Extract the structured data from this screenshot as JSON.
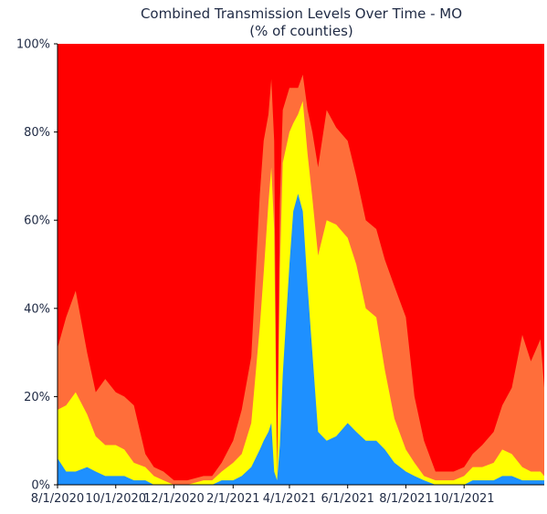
{
  "chart_data": {
    "type": "area",
    "stacked": true,
    "normalized_to_percent": true,
    "title": "Combined Transmission Levels Over Time - MO",
    "subtitle": "(% of counties)",
    "xlabel": "",
    "ylabel": "",
    "x_domain": [
      "2020-08-01",
      "2021-12-24"
    ],
    "ylim": [
      0,
      100
    ],
    "y_ticks": [
      0,
      20,
      40,
      60,
      80,
      100
    ],
    "y_tick_labels": [
      "0%",
      "20%",
      "40%",
      "60%",
      "80%",
      "100%"
    ],
    "x_ticks": [
      "2020-08-01",
      "2020-10-01",
      "2020-12-01",
      "2021-02-01",
      "2021-04-01",
      "2021-06-01",
      "2021-08-01",
      "2021-10-01"
    ],
    "x_tick_labels": [
      "8/1/2020",
      "10/1/2020",
      "12/1/2020",
      "2/1/2021",
      "4/1/2021",
      "6/1/2021",
      "8/1/2021",
      "10/1/2021"
    ],
    "grid": false,
    "legend": "none",
    "colors": {
      "low": "#1e90ff",
      "moderate": "#ffff00",
      "substantial": "#ff6e3a",
      "high": "#ff0000"
    },
    "x": [
      "2020-08-01",
      "2020-08-10",
      "2020-08-20",
      "2020-09-01",
      "2020-09-10",
      "2020-09-20",
      "2020-10-01",
      "2020-10-10",
      "2020-10-20",
      "2020-11-01",
      "2020-11-10",
      "2020-11-20",
      "2020-12-01",
      "2020-12-15",
      "2021-01-01",
      "2021-01-10",
      "2021-01-20",
      "2021-02-01",
      "2021-02-10",
      "2021-02-20",
      "2021-03-01",
      "2021-03-05",
      "2021-03-10",
      "2021-03-13",
      "2021-03-16",
      "2021-03-19",
      "2021-03-22",
      "2021-03-25",
      "2021-04-01",
      "2021-04-05",
      "2021-04-10",
      "2021-04-15",
      "2021-04-20",
      "2021-04-25",
      "2021-05-01",
      "2021-05-10",
      "2021-05-20",
      "2021-06-01",
      "2021-06-10",
      "2021-06-20",
      "2021-07-01",
      "2021-07-10",
      "2021-07-20",
      "2021-08-01",
      "2021-08-10",
      "2021-08-20",
      "2021-09-01",
      "2021-09-10",
      "2021-09-20",
      "2021-10-01",
      "2021-10-10",
      "2021-10-20",
      "2021-11-01",
      "2021-11-10",
      "2021-11-20",
      "2021-12-01",
      "2021-12-10",
      "2021-12-20",
      "2021-12-24"
    ],
    "series": [
      {
        "key": "low",
        "values": [
          6,
          3,
          3,
          4,
          3,
          2,
          2,
          2,
          1,
          1,
          0,
          0,
          0,
          0,
          0,
          0,
          1,
          1,
          2,
          4,
          8,
          10,
          12,
          14,
          3,
          1,
          9,
          25,
          50,
          62,
          66,
          62,
          45,
          30,
          12,
          10,
          11,
          14,
          12,
          10,
          10,
          8,
          5,
          3,
          2,
          1,
          0,
          0,
          0,
          0,
          1,
          1,
          1,
          2,
          2,
          1,
          1,
          1,
          1
        ]
      },
      {
        "key": "moderate",
        "values": [
          11,
          15,
          18,
          12,
          8,
          7,
          7,
          6,
          4,
          3,
          2,
          1,
          0,
          0,
          1,
          1,
          2,
          4,
          5,
          10,
          28,
          38,
          52,
          58,
          55,
          1,
          40,
          48,
          30,
          20,
          18,
          25,
          30,
          35,
          40,
          50,
          48,
          42,
          38,
          30,
          28,
          18,
          10,
          5,
          3,
          1,
          1,
          1,
          1,
          2,
          3,
          3,
          4,
          6,
          5,
          3,
          2,
          2,
          1
        ]
      },
      {
        "key": "substantial",
        "values": [
          14,
          20,
          23,
          14,
          10,
          15,
          12,
          12,
          13,
          3,
          2,
          2,
          1,
          1,
          1,
          1,
          2,
          5,
          10,
          15,
          30,
          30,
          20,
          20,
          20,
          0,
          15,
          12,
          10,
          8,
          6,
          6,
          10,
          15,
          20,
          25,
          22,
          22,
          20,
          20,
          20,
          25,
          30,
          30,
          15,
          8,
          2,
          2,
          2,
          2,
          3,
          5,
          7,
          10,
          15,
          30,
          25,
          30,
          20
        ]
      }
    ]
  }
}
